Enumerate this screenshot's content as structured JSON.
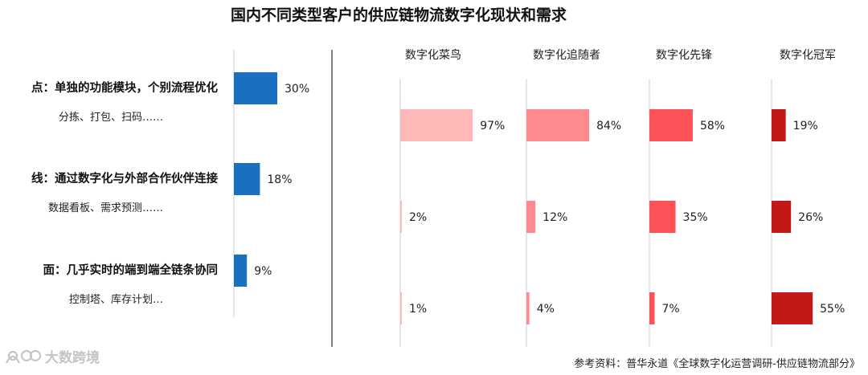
{
  "title": "国内不同类型客户的供应链物流数字化现状和需求",
  "rows": [
    {
      "label": "点：单独的功能模块，个别流程优化",
      "sub": "分拣、打包、扫码……"
    },
    {
      "label": "线：通过数字化与外部合作伙伴连接",
      "sub": "数据看板、需求预测……"
    },
    {
      "label": "面：几乎实时的端到端全链条协同",
      "sub": "控制塔、库存计划…"
    }
  ],
  "source": "参考资料：普华永道《全球数字化运营调研-供应链物流部分》",
  "watermark": "大数跨境",
  "colors": {
    "left_bar": "#1a6fc2",
    "series": [
      "#ffb8b8",
      "#ff8a8e",
      "#ff5258",
      "#c41818"
    ],
    "axis": "#cccccc",
    "divider": "#555555"
  },
  "chart_data": [
    {
      "type": "bar",
      "orientation": "horizontal",
      "categories": [
        "点：单独的功能模块，个别流程优化",
        "线：通过数字化与外部合作伙伴连接",
        "面：几乎实时的端到端全链条协同"
      ],
      "values": [
        30,
        18,
        9
      ],
      "value_labels": [
        "30%",
        "18%",
        "9%"
      ],
      "xlim": [
        0,
        100
      ]
    },
    {
      "type": "bar",
      "orientation": "horizontal",
      "categories": [
        "点",
        "线",
        "面"
      ],
      "series": [
        {
          "name": "数字化菜鸟",
          "values": [
            97,
            2,
            1
          ],
          "labels": [
            "97%",
            "2%",
            "1%"
          ]
        },
        {
          "name": "数字化追随者",
          "values": [
            84,
            12,
            4
          ],
          "labels": [
            "84%",
            "12%",
            "4%"
          ]
        },
        {
          "name": "数字化先锋",
          "values": [
            58,
            35,
            7
          ],
          "labels": [
            "58%",
            "35%",
            "7%"
          ]
        },
        {
          "name": "数字化冠军",
          "values": [
            19,
            26,
            55
          ],
          "labels": [
            "19%",
            "26%",
            "55%"
          ]
        }
      ],
      "xlim": [
        0,
        100
      ]
    }
  ]
}
